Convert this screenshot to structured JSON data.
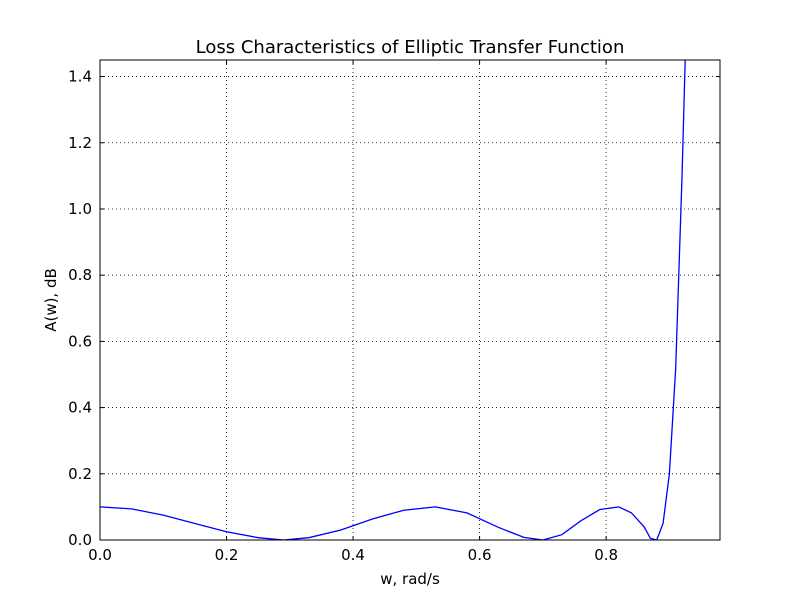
{
  "chart_data": {
    "type": "line",
    "title": "Loss Characteristics of Elliptic Transfer Function",
    "xlabel": "w, rad/s",
    "ylabel": "A(w), dB",
    "xlim": [
      0,
      0.98
    ],
    "ylim": [
      0,
      1.45
    ],
    "grid": true,
    "x_ticks": [
      0.0,
      0.2,
      0.4,
      0.6,
      0.8
    ],
    "x_tick_labels": [
      "0.0",
      "0.2",
      "0.4",
      "0.6",
      "0.8"
    ],
    "y_ticks": [
      0.0,
      0.2,
      0.4,
      0.6,
      0.8,
      1.0,
      1.2,
      1.4
    ],
    "y_tick_labels": [
      "0.0",
      "0.2",
      "0.4",
      "0.6",
      "0.8",
      "1.0",
      "1.2",
      "1.4"
    ],
    "series": [
      {
        "color": "#0000ff",
        "x": [
          0.0,
          0.05,
          0.1,
          0.15,
          0.2,
          0.25,
          0.29,
          0.33,
          0.38,
          0.43,
          0.48,
          0.53,
          0.58,
          0.63,
          0.67,
          0.7,
          0.73,
          0.76,
          0.79,
          0.82,
          0.84,
          0.86,
          0.87,
          0.88,
          0.89,
          0.9,
          0.91,
          0.92,
          0.925
        ],
        "y": [
          0.1,
          0.094,
          0.075,
          0.05,
          0.025,
          0.007,
          0.0,
          0.007,
          0.03,
          0.063,
          0.09,
          0.1,
          0.082,
          0.038,
          0.008,
          0.0,
          0.016,
          0.058,
          0.092,
          0.1,
          0.082,
          0.04,
          0.005,
          0.0,
          0.05,
          0.2,
          0.52,
          1.1,
          1.45
        ]
      }
    ]
  }
}
